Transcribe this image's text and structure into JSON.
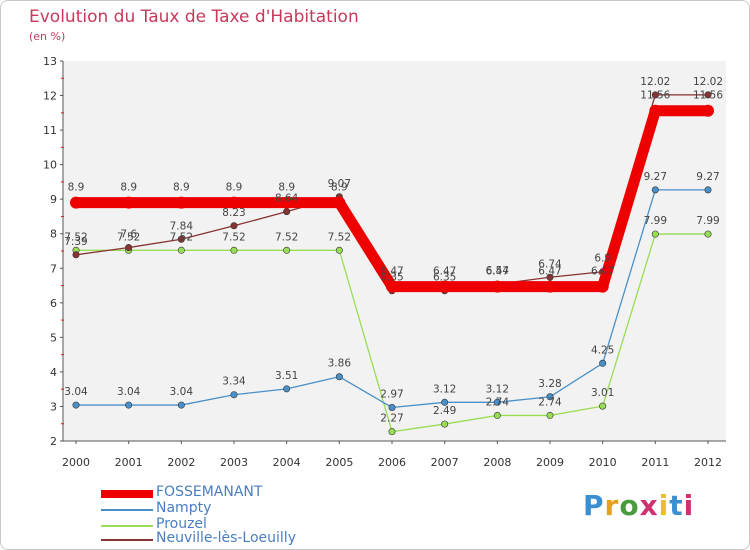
{
  "header": {
    "title": "Evolution du Taux de Taxe d'Habitation",
    "subtitle": "(en %)"
  },
  "logo": {
    "text": "Proxiti"
  },
  "chart_data": {
    "type": "line",
    "title": "Evolution du Taux de Taxe d'Habitation",
    "ylabel": "(en %)",
    "xlabel": "",
    "ylim": [
      2,
      13
    ],
    "yticks": [
      2,
      3,
      4,
      5,
      6,
      7,
      8,
      9,
      10,
      11,
      12,
      13
    ],
    "categories": [
      "2000",
      "2001",
      "2002",
      "2003",
      "2004",
      "2005",
      "2006",
      "2007",
      "2008",
      "2009",
      "2010",
      "2011",
      "2012"
    ],
    "series": [
      {
        "name": "FOSSEMANANT",
        "color": "#ee0000",
        "values": [
          8.9,
          8.9,
          8.9,
          8.9,
          8.9,
          8.9,
          6.47,
          6.47,
          6.47,
          6.47,
          6.47,
          11.56,
          11.56
        ],
        "labels": [
          "8.9",
          "8.9",
          "8.9",
          "8.9",
          "8.9",
          "8.9",
          "6.47",
          "6.47",
          "6.47",
          "6.47",
          "6.47",
          "11.56",
          "11.56"
        ]
      },
      {
        "name": "Nampty",
        "color": "#4a90c8",
        "values": [
          3.04,
          3.04,
          3.04,
          3.34,
          3.51,
          3.86,
          2.97,
          3.12,
          3.12,
          3.28,
          4.25,
          9.27,
          9.27
        ],
        "labels": [
          "3.04",
          "3.04",
          "3.04",
          "3.34",
          "3.51",
          "3.86",
          "2.97",
          "3.12",
          "3.12",
          "3.28",
          "4.25",
          "9.27",
          "9.27"
        ]
      },
      {
        "name": "Prouzel",
        "color": "#99dd55",
        "values": [
          7.52,
          7.52,
          7.52,
          7.52,
          7.52,
          7.52,
          2.27,
          2.49,
          2.74,
          2.74,
          3.01,
          7.99,
          7.99
        ],
        "labels": [
          "7.52",
          "7.52",
          "7.52",
          "7.52",
          "7.52",
          "7.52",
          "2.27",
          "2.49",
          "2.74",
          "2.74",
          "3.01",
          "7.99",
          "7.99"
        ]
      },
      {
        "name": "Neuville-lès-Loeuilly",
        "color": "#883333",
        "values": [
          7.39,
          7.6,
          7.84,
          8.23,
          8.64,
          9.07,
          6.35,
          6.35,
          6.54,
          6.74,
          6.9,
          12.02,
          12.02
        ],
        "labels": [
          "7.39",
          "7.6",
          "7.84",
          "8.23",
          "8.64",
          "9.07",
          "6.35",
          "6.35",
          "6.54",
          "6.74",
          "6.9",
          "12.02",
          "12.02"
        ]
      }
    ],
    "legend_position": "bottom-left",
    "grid": false
  }
}
